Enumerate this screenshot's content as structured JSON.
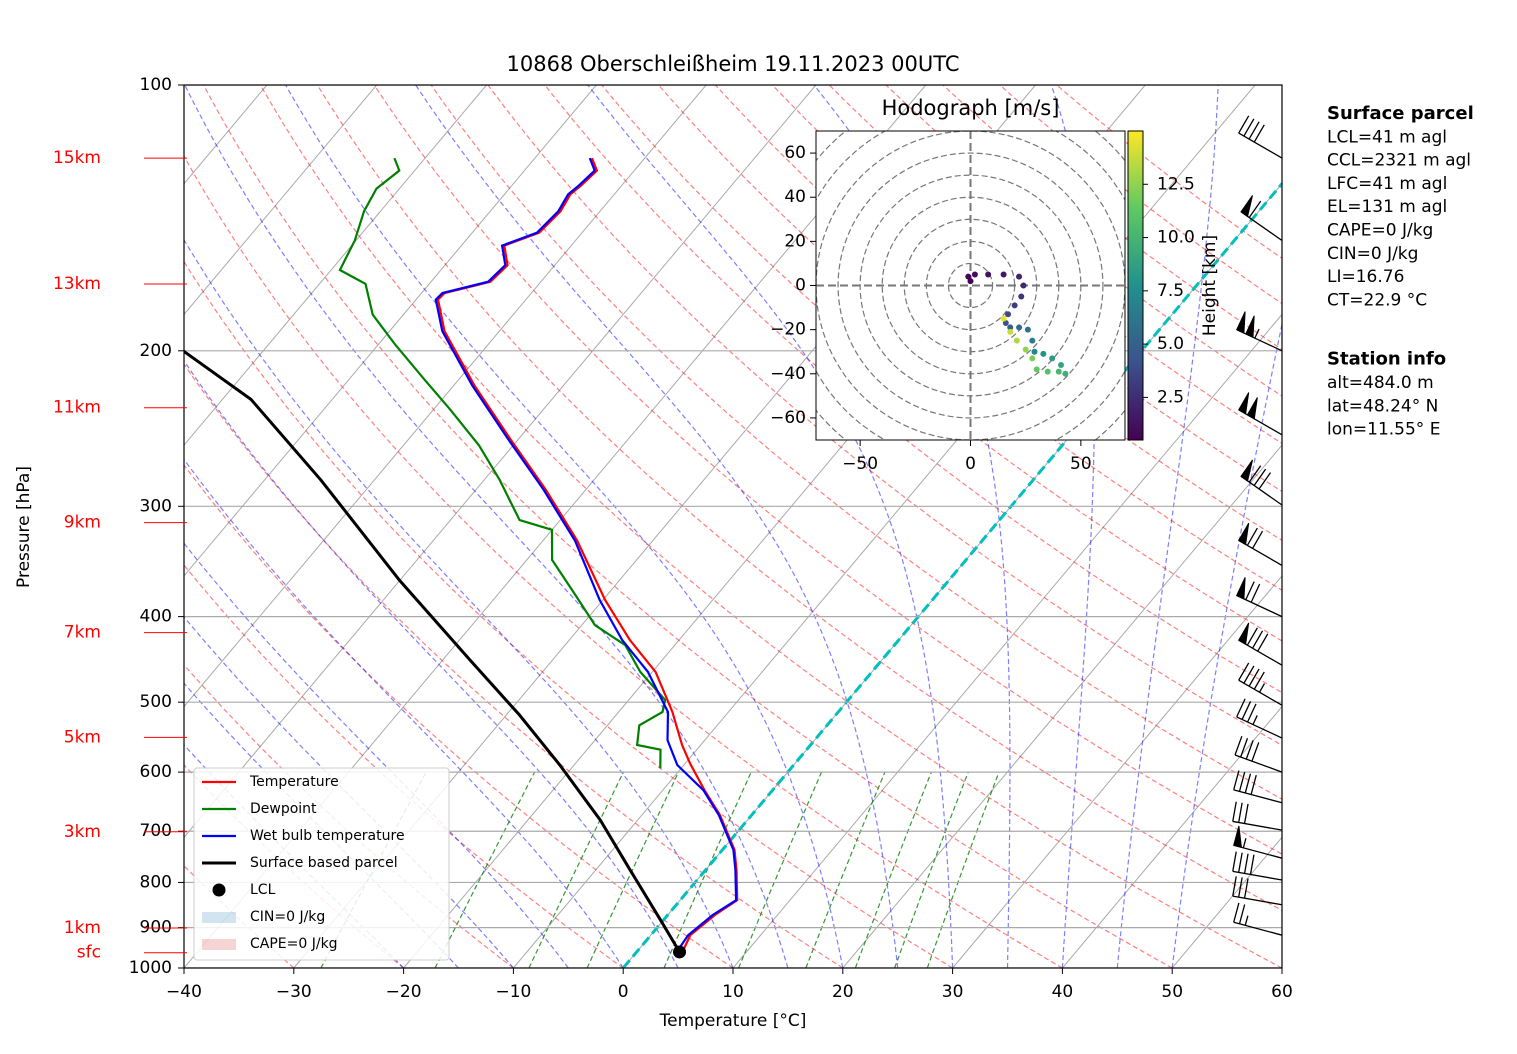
{
  "chart_data": {
    "type": "skewt",
    "title": "10868 Oberschleißheim 19.11.2023 00UTC",
    "xlabel": "Temperature [°C]",
    "ylabel": "Pressure [hPa]",
    "xlim": [
      -40,
      60
    ],
    "ylim": [
      1000,
      100
    ],
    "log_y": true,
    "grid": true,
    "legend": "lower left",
    "xticks": [
      {
        "value": -40,
        "label": "−40"
      },
      {
        "value": -30,
        "label": "−30"
      },
      {
        "value": -20,
        "label": "−20"
      },
      {
        "value": -10,
        "label": "−10"
      },
      0,
      10,
      20,
      30,
      40,
      50,
      60
    ],
    "yticks": [
      100,
      200,
      300,
      400,
      500,
      600,
      700,
      800,
      900,
      1000
    ],
    "series": [
      {
        "name": "Temperature",
        "color": "#ff0000",
        "pressure": [
          954,
          918,
          871,
          838,
          774,
          735,
          671,
          629,
          586,
          559,
          513,
          462,
          425,
          383,
          328,
          287,
          252,
          219,
          190,
          175,
          172,
          167,
          160,
          152,
          147,
          139,
          133,
          130,
          125,
          121
        ],
        "temperature": [
          4.1,
          3.6,
          4.3,
          5.2,
          2.8,
          1.1,
          -2.9,
          -6.2,
          -9.6,
          -11.7,
          -15.1,
          -19.7,
          -24.5,
          -29.8,
          -36.9,
          -43.7,
          -50.7,
          -58.1,
          -65.0,
          -68.0,
          -67.9,
          -64.6,
          -64.3,
          -66.1,
          -63.9,
          -63.6,
          -64.0,
          -63.7,
          -63.4,
          -64.8
        ]
      },
      {
        "name": "Dewpoint",
        "color": "#008000",
        "pressure": [
          594,
          566,
          559,
          531,
          513,
          497,
          462,
          431,
          409,
          378,
          345,
          319,
          311,
          280,
          256,
          233,
          216,
          197,
          182,
          168,
          162,
          150,
          139,
          131,
          125,
          121
        ],
        "temperature": [
          -11.9,
          -13.3,
          -15.8,
          -17.1,
          -16.0,
          -16.7,
          -21.1,
          -24.5,
          -28.8,
          -32.9,
          -37.7,
          -40.0,
          -43.7,
          -48.6,
          -53.1,
          -58.5,
          -63.0,
          -68.4,
          -72.8,
          -75.8,
          -79.2,
          -80.1,
          -81.5,
          -82.1,
          -81.4,
          -82.8
        ]
      },
      {
        "name": "Wet bulb temperature",
        "color": "#0000ff",
        "pressure": [
          967,
          918,
          871,
          838,
          774,
          735,
          671,
          629,
          589,
          552,
          513,
          462,
          425,
          383,
          328,
          287,
          252,
          219,
          190,
          175,
          172,
          167,
          160,
          152,
          147,
          139,
          133,
          130,
          125,
          121
        ],
        "temperature": [
          3.7,
          3.4,
          4.1,
          5.1,
          2.7,
          1.0,
          -3.0,
          -6.3,
          -10.6,
          -13.4,
          -15.5,
          -20.4,
          -25.2,
          -30.3,
          -37.1,
          -43.9,
          -50.9,
          -58.3,
          -65.2,
          -68.2,
          -68.1,
          -64.8,
          -64.5,
          -66.3,
          -64.1,
          -63.8,
          -64.2,
          -63.9,
          -63.6,
          -65.0
        ]
      },
      {
        "name": "Surface based parcel",
        "color": "#000000",
        "pressure": [
          959,
          882,
          774,
          680,
          589,
          517,
          448,
          364,
          280,
          227,
          200
        ],
        "temperature": [
          3.9,
          -0.3,
          -6.9,
          -13.4,
          -21.3,
          -28.8,
          -37.5,
          -50.0,
          -64.9,
          -77.4,
          -87.3
        ]
      }
    ],
    "lcl": {
      "name": "LCL",
      "pressure": 959,
      "temperature": 3.9
    },
    "cin_label": "CIN=0 J/kg",
    "cape_label": "CAPE=0 J/kg",
    "height_labels": [
      {
        "label": "15km",
        "pressure": 121
      },
      {
        "label": "13km",
        "pressure": 168
      },
      {
        "label": "11km",
        "pressure": 232
      },
      {
        "label": "9km",
        "pressure": 313
      },
      {
        "label": "7km",
        "pressure": 417
      },
      {
        "label": "5km",
        "pressure": 548
      },
      {
        "label": "3km",
        "pressure": 701
      },
      {
        "label": "1km",
        "pressure": 901
      },
      {
        "label": "sfc",
        "pressure": 961
      }
    ],
    "barbs": {
      "pressure": [
        121,
        150,
        200,
        249,
        299,
        350,
        400,
        454,
        504,
        549,
        600,
        650,
        698,
        751,
        795,
        848,
        918
      ],
      "speed": [
        40,
        60,
        105,
        100,
        80,
        70,
        70,
        80,
        45,
        35,
        40,
        40,
        30,
        55,
        40,
        30,
        25
      ],
      "direction": [
        300,
        305,
        295,
        300,
        305,
        300,
        295,
        300,
        300,
        295,
        290,
        285,
        280,
        285,
        280,
        280,
        285
      ]
    },
    "hodograph": {
      "title": "Hodograph [m/s]",
      "xlim": [
        -70,
        70
      ],
      "ylim": [
        -70,
        70
      ],
      "xticks": [
        {
          "value": -50,
          "label": "−50"
        },
        0,
        50
      ],
      "yticks": [
        {
          "value": -60,
          "label": "−60"
        },
        {
          "value": -40,
          "label": "−40"
        },
        {
          "value": -20,
          "label": "−20"
        },
        0,
        20,
        40,
        60
      ],
      "u": [
        0,
        -1,
        2,
        8,
        15,
        22,
        24,
        23,
        20,
        17,
        16,
        18,
        22,
        26,
        28,
        29,
        33,
        37,
        41,
        43,
        40,
        35,
        30,
        28,
        25,
        21,
        18,
        15
      ],
      "v": [
        2,
        4,
        5,
        5,
        5,
        4,
        0,
        -5,
        -9,
        -13,
        -17,
        -19,
        -19,
        -20,
        -25,
        -30,
        -31,
        -33,
        -36,
        -40,
        -39,
        -39,
        -38,
        -33,
        -29,
        -25,
        -21,
        -15
      ],
      "height": [
        0.5,
        0.8,
        1.0,
        1.3,
        1.6,
        2.0,
        2.4,
        2.8,
        3.2,
        3.7,
        4.2,
        4.8,
        5.4,
        6.0,
        6.6,
        7.2,
        7.8,
        8.4,
        9.0,
        9.6,
        10.2,
        10.8,
        11.4,
        12.0,
        12.6,
        13.2,
        13.8,
        14.4
      ],
      "colorbar": {
        "label": "Height [km]",
        "clim": [
          0.5,
          15
        ],
        "ticks": [
          2.5,
          {
            "value": 5,
            "label": "5.0"
          },
          7.5,
          {
            "value": 10,
            "label": "10.0"
          },
          12.5
        ]
      }
    },
    "info": {
      "surface_parcel": {
        "heading": "Surface parcel",
        "lines": [
          "LCL=41 m agl",
          "CCL=2321 m agl",
          "LFC=41 m agl",
          "EL=131 m agl",
          "CAPE=0 J/kg",
          "CIN=0 J/kg",
          "LI=16.76",
          "CT=22.9 °C"
        ]
      },
      "station_info": {
        "heading": "Station info",
        "lines": [
          "alt=484.0 m",
          "lat=48.24° N",
          "lon=11.55° E"
        ]
      }
    }
  }
}
